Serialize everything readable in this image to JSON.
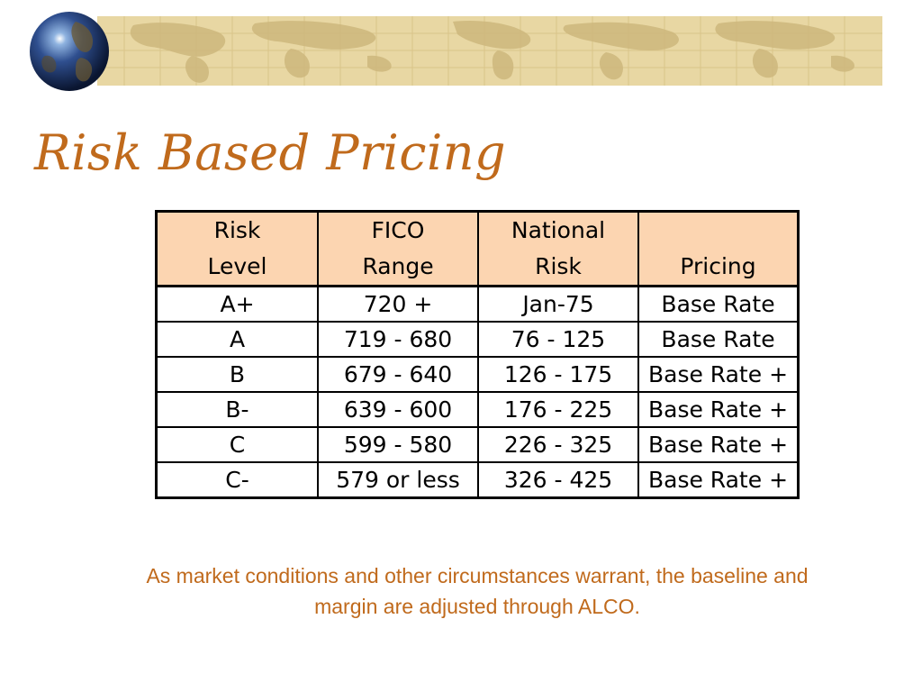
{
  "slide": {
    "title": "Risk Based Pricing",
    "note": "As market conditions and other circumstances warrant, the baseline and margin are adjusted through ALCO."
  },
  "table": {
    "headers": [
      [
        "Risk",
        "Level"
      ],
      [
        "FICO",
        "Range"
      ],
      [
        "National",
        "Risk"
      ],
      [
        "",
        "Pricing"
      ]
    ],
    "rows": [
      [
        "A+",
        "720 +",
        "Jan-75",
        "Base Rate"
      ],
      [
        "A",
        "719 - 680",
        "76 - 125",
        "Base Rate"
      ],
      [
        "B",
        "679 - 640",
        "126 - 175",
        "Base Rate +"
      ],
      [
        "B-",
        "639 - 600",
        "176 - 225",
        "Base Rate +"
      ],
      [
        "C",
        "599 - 580",
        "226 - 325",
        "Base Rate +"
      ],
      [
        "C-",
        "579 or less",
        "326 - 425",
        "Base Rate +"
      ]
    ]
  },
  "colors": {
    "accent": "#c06a1c",
    "header_fill": "#fcd5b1",
    "banner": "#e8d7a3"
  }
}
